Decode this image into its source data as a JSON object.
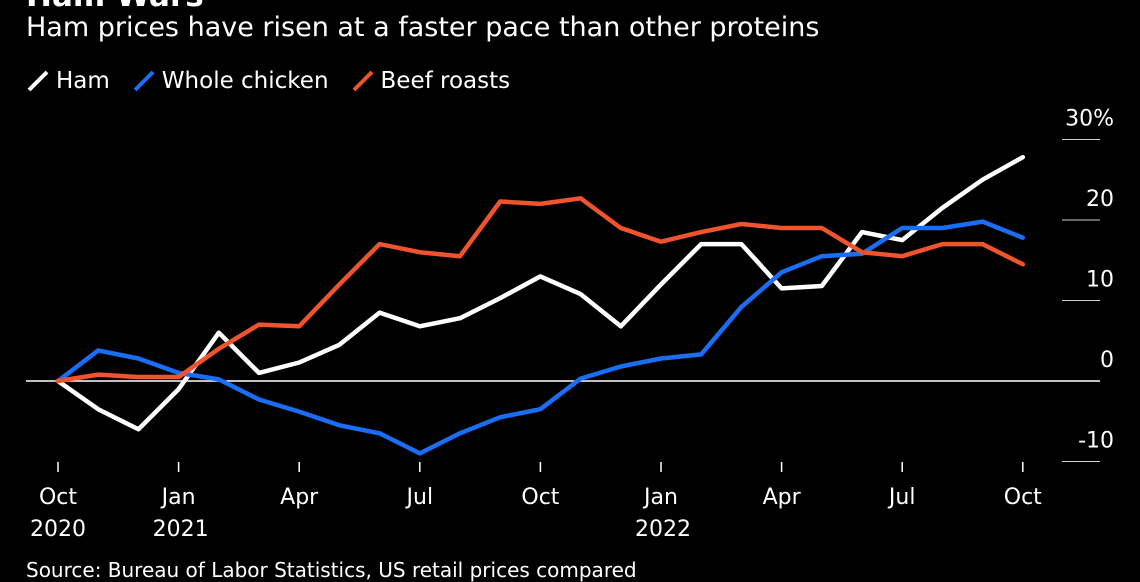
{
  "title": "Ham Wars",
  "subtitle": "Ham prices have risen at a faster pace than other proteins",
  "source": "Source: Bureau of Labor Statistics, US retail prices compared",
  "chart_data": {
    "type": "line",
    "x": [
      "2020-10",
      "2020-11",
      "2020-12",
      "2021-01",
      "2021-02",
      "2021-03",
      "2021-04",
      "2021-05",
      "2021-06",
      "2021-07",
      "2021-08",
      "2021-09",
      "2021-10",
      "2021-11",
      "2021-12",
      "2022-01",
      "2022-02",
      "2022-03",
      "2022-04",
      "2022-05",
      "2022-06",
      "2022-07",
      "2022-08",
      "2022-09",
      "2022-10",
      "2022-11"
    ],
    "series": [
      {
        "name": "Ham",
        "color": "#ffffff",
        "values": [
          0,
          -3.5,
          -6,
          -1,
          6,
          1,
          2.3,
          4.5,
          8.5,
          6.8,
          7.8,
          10.3,
          13,
          10.8,
          6.8,
          12,
          17,
          17,
          11.5,
          11.8,
          18.5,
          17.5,
          21.5,
          25,
          27.8,
          null
        ]
      },
      {
        "name": "Whole chicken",
        "color": "#1a6ef5",
        "values": [
          0,
          3.8,
          2.8,
          1,
          0.2,
          -2.3,
          -3.8,
          -5.5,
          -6.5,
          -9,
          -6.5,
          -4.5,
          -3.5,
          0.3,
          1.8,
          2.8,
          3.3,
          9.2,
          13.5,
          15.5,
          15.8,
          19,
          19,
          19.8,
          17.8,
          null
        ]
      },
      {
        "name": "Beef roasts",
        "color": "#f0542c",
        "values": [
          0,
          0.8,
          0.5,
          0.5,
          4,
          7,
          6.8,
          12,
          17,
          16,
          15.5,
          22.3,
          22,
          22.7,
          19,
          17.3,
          18.5,
          19.5,
          19,
          19,
          16,
          15.5,
          17,
          17,
          14.5,
          null
        ]
      }
    ],
    "x_ticks": [
      {
        "month": "2020-10",
        "label": "Oct",
        "year": "2020"
      },
      {
        "month": "2021-01",
        "label": "Jan",
        "year": "2021"
      },
      {
        "month": "2021-04",
        "label": "Apr",
        "year": ""
      },
      {
        "month": "2021-07",
        "label": "Jul",
        "year": ""
      },
      {
        "month": "2021-10",
        "label": "Oct",
        "year": ""
      },
      {
        "month": "2022-01",
        "label": "Jan",
        "year": "2022"
      },
      {
        "month": "2022-04",
        "label": "Apr",
        "year": ""
      },
      {
        "month": "2022-07",
        "label": "Jul",
        "year": ""
      },
      {
        "month": "2022-10",
        "label": "Oct",
        "year": ""
      }
    ],
    "y_ticks": [
      {
        "value": 30,
        "label": "30%"
      },
      {
        "value": 20,
        "label": "20"
      },
      {
        "value": 10,
        "label": "10"
      },
      {
        "value": 0,
        "label": "0"
      },
      {
        "value": -10,
        "label": "-10"
      }
    ],
    "ylim": [
      -10,
      30
    ],
    "legend_position": "top-left"
  }
}
